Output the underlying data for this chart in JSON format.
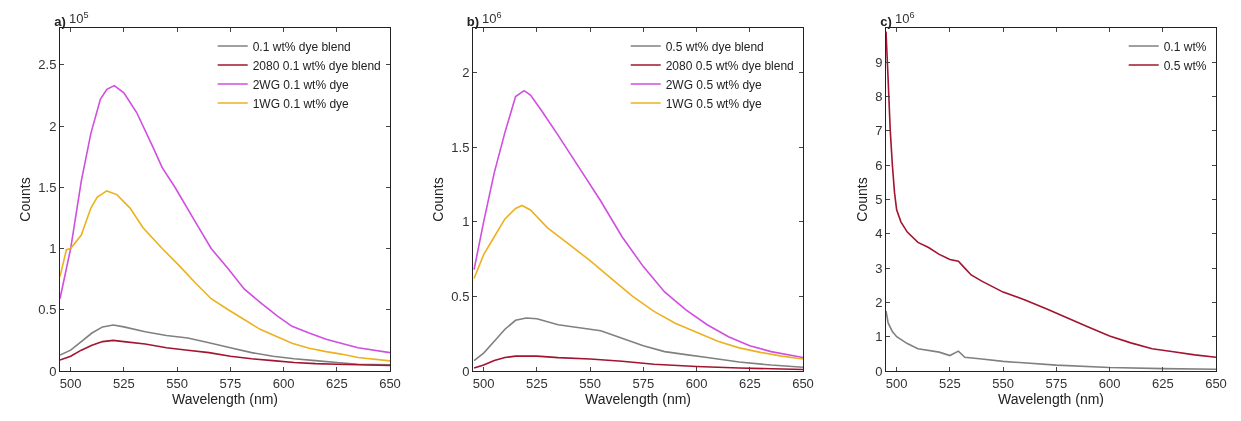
{
  "chart_data": [
    {
      "type": "line",
      "title": "a)",
      "annotations": [
        "10$^{5}$"
      ],
      "xlabel": "Wavelength (nm)",
      "ylabel": "Counts",
      "xlim": [
        495,
        650
      ],
      "xticks": [
        500,
        525,
        550,
        575,
        600,
        625,
        650
      ],
      "ylim": [
        0,
        2.8
      ],
      "yticks": [
        0,
        0.5,
        1,
        1.5,
        2,
        2.5
      ],
      "grid": false,
      "legend": "top right",
      "line_style": "solid",
      "marker": "none",
      "series": [
        {
          "name": "0.1 wt% dye blend",
          "color": "#808080",
          "x": [
            495,
            500,
            505,
            510,
            515,
            520,
            525,
            535,
            545,
            555,
            565,
            575,
            585,
            595,
            605,
            615,
            625,
            635,
            650
          ],
          "values": [
            0.13,
            0.17,
            0.24,
            0.31,
            0.36,
            0.375,
            0.36,
            0.32,
            0.29,
            0.27,
            0.23,
            0.19,
            0.15,
            0.12,
            0.1,
            0.085,
            0.07,
            0.055,
            0.05
          ]
        },
        {
          "name": "2080 0.1 wt% dye blend",
          "color": "#a2142f",
          "x": [
            495,
            500,
            505,
            510,
            515,
            520,
            525,
            535,
            545,
            555,
            565,
            575,
            585,
            595,
            605,
            615,
            625,
            650
          ],
          "values": [
            0.09,
            0.12,
            0.17,
            0.21,
            0.24,
            0.25,
            0.24,
            0.22,
            0.19,
            0.17,
            0.15,
            0.12,
            0.1,
            0.085,
            0.07,
            0.06,
            0.055,
            0.045
          ]
        },
        {
          "name": "2WG 0.1 wt% dye",
          "color": "#d04ee0",
          "x": [
            495,
            500,
            505,
            509.5,
            514,
            517,
            520.5,
            525,
            531,
            538.6,
            543,
            549,
            558.5,
            566,
            574,
            581.5,
            589,
            597,
            604,
            612,
            620,
            627,
            635,
            650
          ],
          "values": [
            0.59,
            1.0,
            1.55,
            1.94,
            2.22,
            2.3,
            2.33,
            2.27,
            2.11,
            1.83,
            1.66,
            1.5,
            1.22,
            1.0,
            0.835,
            0.67,
            0.56,
            0.45,
            0.365,
            0.31,
            0.26,
            0.227,
            0.19,
            0.15
          ]
        },
        {
          "name": "1WG 0.1 wt% dye",
          "color": "#edb120",
          "x": [
            495,
            498,
            500,
            505,
            509.5,
            512.5,
            517,
            521.7,
            527.9,
            534,
            543,
            551,
            558.5,
            566,
            574,
            581.5,
            589,
            597,
            604,
            612,
            620,
            627,
            635,
            650
          ],
          "values": [
            0.77,
            0.99,
            1.0,
            1.11,
            1.33,
            1.42,
            1.47,
            1.44,
            1.33,
            1.17,
            1.0,
            0.86,
            0.72,
            0.59,
            0.5,
            0.42,
            0.34,
            0.28,
            0.227,
            0.185,
            0.158,
            0.138,
            0.11,
            0.083
          ]
        }
      ]
    },
    {
      "type": "line",
      "title": "b)",
      "annotations": [
        "10$^{6}$"
      ],
      "xlabel": "Wavelength (nm)",
      "ylabel": "Counts",
      "xlim": [
        495,
        650
      ],
      "xticks": [
        500,
        525,
        550,
        575,
        600,
        625,
        650
      ],
      "ylim": [
        0,
        2.3
      ],
      "yticks": [
        0,
        0.5,
        1,
        1.5,
        2
      ],
      "grid": false,
      "legend": "top right",
      "line_style": "solid",
      "marker": "none",
      "series": [
        {
          "name": "0.5 wt% dye blend",
          "color": "#808080",
          "x": [
            495.5,
            500,
            505,
            510,
            515,
            520,
            525,
            535,
            545,
            555,
            565,
            575,
            585,
            595,
            605,
            620,
            635,
            650
          ],
          "values": [
            0.07,
            0.12,
            0.2,
            0.28,
            0.34,
            0.355,
            0.35,
            0.31,
            0.29,
            0.27,
            0.22,
            0.17,
            0.13,
            0.11,
            0.09,
            0.06,
            0.04,
            0.025
          ]
        },
        {
          "name": "2080 0.5 wt% dye blend",
          "color": "#a2142f",
          "x": [
            495.5,
            500,
            505,
            510,
            515,
            525,
            535,
            550,
            565,
            580,
            600,
            620,
            650
          ],
          "values": [
            0.02,
            0.04,
            0.07,
            0.09,
            0.1,
            0.1,
            0.09,
            0.08,
            0.065,
            0.045,
            0.03,
            0.02,
            0.01
          ]
        },
        {
          "name": "2WG 0.5 wt% dye",
          "color": "#d04ee0",
          "x": [
            495.5,
            500,
            505,
            510,
            515,
            519,
            522,
            527,
            535,
            545,
            555,
            565,
            575,
            585,
            595,
            605,
            615,
            625,
            635,
            650
          ],
          "values": [
            0.68,
            1.0,
            1.33,
            1.6,
            1.84,
            1.88,
            1.85,
            1.75,
            1.58,
            1.36,
            1.14,
            0.9,
            0.7,
            0.53,
            0.41,
            0.31,
            0.23,
            0.17,
            0.13,
            0.09
          ]
        },
        {
          "name": "1WG 0.5 wt% dye",
          "color": "#edb120",
          "x": [
            495.5,
            500,
            505,
            510,
            515,
            518,
            522,
            530,
            540,
            550,
            560,
            570,
            580,
            590,
            600,
            610,
            620,
            630,
            640,
            650
          ],
          "values": [
            0.62,
            0.78,
            0.9,
            1.02,
            1.09,
            1.11,
            1.08,
            0.96,
            0.85,
            0.74,
            0.62,
            0.5,
            0.4,
            0.32,
            0.26,
            0.2,
            0.155,
            0.125,
            0.1,
            0.08
          ]
        }
      ]
    },
    {
      "type": "line",
      "title": "c)",
      "annotations": [
        "10$^{6}$"
      ],
      "xlabel": "Wavelength (nm)",
      "ylabel": "Counts",
      "xlim": [
        495,
        650
      ],
      "xticks": [
        500,
        525,
        550,
        575,
        600,
        625,
        650
      ],
      "ylim": [
        0,
        10
      ],
      "yticks": [
        0,
        1,
        2,
        3,
        4,
        5,
        6,
        7,
        8,
        9
      ],
      "grid": false,
      "legend": "top right",
      "line_style": "solid",
      "marker": "none",
      "series": [
        {
          "name": "0.1 wt%",
          "color": "#808080",
          "x": [
            495,
            496,
            498,
            500,
            505,
            510,
            520,
            525,
            529,
            532,
            540,
            550,
            575,
            600,
            625,
            650
          ],
          "values": [
            1.75,
            1.4,
            1.15,
            1.0,
            0.8,
            0.65,
            0.55,
            0.45,
            0.58,
            0.4,
            0.35,
            0.28,
            0.17,
            0.1,
            0.07,
            0.05
          ]
        },
        {
          "name": "0.5 wt%",
          "color": "#a2142f",
          "x": [
            495,
            496,
            497,
            498,
            499,
            500,
            502,
            505,
            510,
            515,
            520,
            525,
            529,
            532,
            535,
            540,
            550,
            560,
            570,
            580,
            590,
            600,
            610,
            620,
            630,
            640,
            650
          ],
          "values": [
            9.9,
            8.5,
            7.0,
            6.0,
            5.2,
            4.7,
            4.35,
            4.05,
            3.75,
            3.6,
            3.4,
            3.25,
            3.2,
            3.0,
            2.8,
            2.62,
            2.3,
            2.08,
            1.82,
            1.55,
            1.28,
            1.02,
            0.82,
            0.65,
            0.56,
            0.47,
            0.4
          ]
        }
      ]
    }
  ]
}
